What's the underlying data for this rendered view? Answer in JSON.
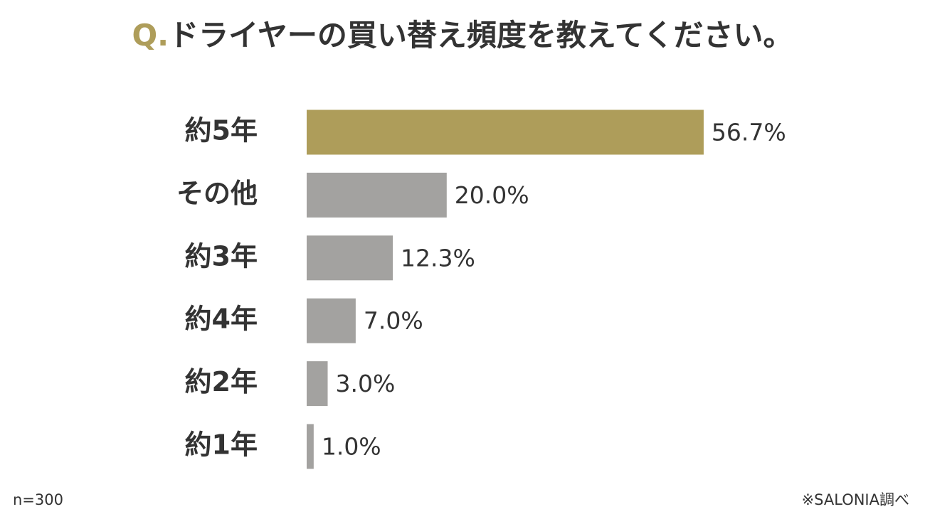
{
  "chart_data": {
    "type": "bar",
    "orientation": "horizontal",
    "title_prefix": "Q.",
    "title": "ドライヤーの買い替え頻度を教えてください。",
    "categories": [
      "約5年",
      "その他",
      "約3年",
      "約4年",
      "約2年",
      "約1年"
    ],
    "values": [
      56.7,
      20.0,
      12.3,
      7.0,
      3.0,
      1.0
    ],
    "value_labels": [
      "56.7%",
      "20.0%",
      "12.3%",
      "7.0%",
      "3.0%",
      "1.0%"
    ],
    "colors": [
      "#ae9d5a",
      "#a3a2a0",
      "#a3a2a0",
      "#a3a2a0",
      "#a3a2a0",
      "#a3a2a0"
    ],
    "label_colors": [
      "#ae9d5a",
      "#333333",
      "#333333",
      "#333333",
      "#333333",
      "#333333"
    ],
    "note_left": "n=300",
    "note_right": "※SALONIA調べ"
  }
}
